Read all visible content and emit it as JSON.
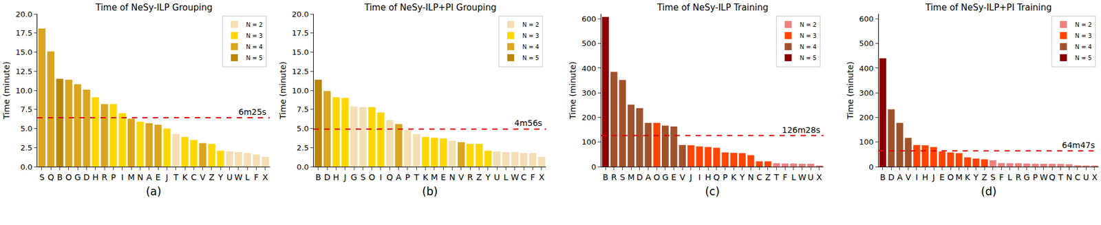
{
  "chart_data": [
    {
      "type": "bar",
      "title": "Time of NeSy-ILP Grouping",
      "x_label": "(a)",
      "y_label": "Time (minute)",
      "categories": [
        "S",
        "Q",
        "B",
        "O",
        "G",
        "D",
        "H",
        "R",
        "P",
        "I",
        "M",
        "N",
        "A",
        "E",
        "J",
        "T",
        "K",
        "C",
        "V",
        "Z",
        "Y",
        "U",
        "W",
        "L",
        "F",
        "X"
      ],
      "series": [
        {
          "name": "N = 2",
          "color": "#f5deb3",
          "values": [
            null,
            null,
            null,
            null,
            null,
            null,
            null,
            null,
            null,
            null,
            null,
            null,
            null,
            null,
            null,
            4.3,
            null,
            null,
            null,
            null,
            null,
            2.0,
            1.9,
            1.8,
            1.6,
            1.3
          ]
        },
        {
          "name": "N = 3",
          "color": "#ffd700",
          "values": [
            null,
            null,
            null,
            null,
            null,
            null,
            9.1,
            null,
            8.2,
            7.0,
            null,
            5.9,
            null,
            null,
            5.0,
            null,
            3.9,
            3.5,
            null,
            3.0,
            2.1,
            null,
            null,
            null,
            null,
            null
          ]
        },
        {
          "name": "N = 4",
          "color": "#daa520",
          "values": [
            18.1,
            15.1,
            null,
            11.4,
            10.8,
            10.1,
            null,
            8.2,
            null,
            null,
            6.3,
            null,
            5.7,
            5.5,
            null,
            null,
            null,
            null,
            3.1,
            null,
            null,
            null,
            null,
            null,
            null,
            null
          ]
        },
        {
          "name": "N = 5",
          "color": "#b8860b",
          "values": [
            null,
            null,
            11.5,
            null,
            null,
            null,
            null,
            null,
            null,
            null,
            null,
            null,
            null,
            null,
            null,
            null,
            null,
            null,
            null,
            null,
            null,
            null,
            null,
            null,
            null,
            null
          ]
        }
      ],
      "mean_line": {
        "value": 6.42,
        "label": "6m25s"
      },
      "ylim": [
        0,
        20
      ],
      "yticks": [
        {
          "value": 0,
          "label": "0.0"
        },
        2.5,
        {
          "value": 5,
          "label": "5.0"
        },
        7.5,
        {
          "value": 10,
          "label": "10.0"
        },
        12.5,
        {
          "value": 15,
          "label": "15.0"
        },
        17.5,
        {
          "value": 20,
          "label": "20.0"
        }
      ],
      "grid": false,
      "legend": "upper right"
    },
    {
      "type": "bar",
      "title": "Time of NeSy-ILP+PI Grouping",
      "x_label": "(b)",
      "y_label": "Time (minute)",
      "categories": [
        "B",
        "D",
        "H",
        "J",
        "G",
        "S",
        "O",
        "I",
        "Q",
        "A",
        "P",
        "T",
        "K",
        "M",
        "E",
        "N",
        "V",
        "R",
        "Z",
        "Y",
        "U",
        "L",
        "W",
        "C",
        "F",
        "X"
      ],
      "series": [
        {
          "name": "N = 2",
          "color": "#f5deb3",
          "values": [
            null,
            null,
            null,
            null,
            7.9,
            7.8,
            null,
            null,
            6.1,
            null,
            4.8,
            4.3,
            null,
            null,
            null,
            3.4,
            null,
            null,
            null,
            null,
            2.0,
            1.9,
            1.9,
            1.8,
            1.8,
            1.3
          ]
        },
        {
          "name": "N = 3",
          "color": "#ffd700",
          "values": [
            null,
            null,
            9.1,
            9.0,
            null,
            null,
            7.8,
            7.1,
            null,
            null,
            null,
            null,
            3.9,
            3.8,
            3.7,
            null,
            null,
            3.0,
            3.0,
            2.1,
            null,
            null,
            null,
            null,
            null,
            null
          ]
        },
        {
          "name": "N = 4",
          "color": "#daa520",
          "values": [
            null,
            9.9,
            null,
            null,
            null,
            null,
            null,
            null,
            null,
            5.6,
            null,
            null,
            null,
            null,
            null,
            null,
            3.2,
            null,
            null,
            null,
            null,
            null,
            null,
            null,
            null,
            null
          ]
        },
        {
          "name": "N = 5",
          "color": "#b8860b",
          "values": [
            11.4,
            null,
            null,
            null,
            null,
            null,
            null,
            null,
            null,
            null,
            null,
            null,
            null,
            null,
            null,
            null,
            null,
            null,
            null,
            null,
            null,
            null,
            null,
            null,
            null,
            null
          ]
        }
      ],
      "mean_line": {
        "value": 4.93,
        "label": "4m56s"
      },
      "ylim": [
        0,
        20
      ],
      "yticks": [
        {
          "value": 0,
          "label": "0.0"
        },
        2.5,
        {
          "value": 5,
          "label": "5.0"
        },
        7.5,
        {
          "value": 10,
          "label": "10.0"
        },
        12.5,
        {
          "value": 15,
          "label": "15.0"
        },
        17.5,
        {
          "value": 20,
          "label": "20.0"
        }
      ],
      "grid": false,
      "legend": "upper right"
    },
    {
      "type": "bar",
      "title": "Time of NeSy-ILP Training",
      "x_label": "(c)",
      "y_label": "Time (minute)",
      "categories": [
        "B",
        "R",
        "S",
        "M",
        "D",
        "A",
        "O",
        "G",
        "E",
        "V",
        "J",
        "I",
        "H",
        "Q",
        "P",
        "K",
        "Y",
        "N",
        "C",
        "Z",
        "T",
        "F",
        "L",
        "W",
        "U",
        "X"
      ],
      "series": [
        {
          "name": "N = 2",
          "color": "#f08080",
          "values": [
            null,
            null,
            null,
            null,
            null,
            null,
            null,
            null,
            null,
            null,
            null,
            null,
            null,
            null,
            null,
            null,
            null,
            null,
            null,
            null,
            14,
            13,
            13,
            12,
            12,
            4
          ]
        },
        {
          "name": "N = 3",
          "color": "#ff4500",
          "values": [
            null,
            null,
            null,
            null,
            null,
            null,
            178,
            null,
            null,
            null,
            87,
            82,
            80,
            77,
            58,
            56,
            55,
            47,
            22,
            22,
            null,
            null,
            null,
            null,
            null,
            null
          ]
        },
        {
          "name": "N = 4",
          "color": "#a0522d",
          "values": [
            null,
            385,
            352,
            252,
            238,
            178,
            null,
            167,
            163,
            88,
            null,
            null,
            null,
            null,
            null,
            null,
            null,
            null,
            null,
            null,
            null,
            null,
            null,
            null,
            null,
            null
          ]
        },
        {
          "name": "N = 5",
          "color": "#8b0000",
          "values": [
            608,
            null,
            null,
            null,
            null,
            null,
            null,
            null,
            null,
            null,
            null,
            null,
            null,
            null,
            null,
            null,
            null,
            null,
            null,
            null,
            null,
            null,
            null,
            null,
            null,
            null
          ]
        }
      ],
      "mean_line": {
        "value": 126.47,
        "label": "126m28s"
      },
      "ylim": [
        0,
        620
      ],
      "yticks": [
        0,
        100,
        200,
        300,
        400,
        500,
        600
      ],
      "grid": false,
      "legend": "upper right"
    },
    {
      "type": "bar",
      "title": "Time of NeSy-ILP+PI Training",
      "x_label": "(d)",
      "y_label": "Time (minute)",
      "categories": [
        "B",
        "D",
        "A",
        "V",
        "I",
        "H",
        "J",
        "E",
        "O",
        "M",
        "K",
        "Y",
        "Z",
        "S",
        "F",
        "L",
        "R",
        "G",
        "P",
        "W",
        "Q",
        "T",
        "N",
        "C",
        "U",
        "X"
      ],
      "series": [
        {
          "name": "N = 2",
          "color": "#f08080",
          "values": [
            null,
            null,
            null,
            null,
            null,
            null,
            null,
            null,
            null,
            null,
            null,
            null,
            null,
            26,
            15,
            14,
            14,
            13,
            12,
            12,
            12,
            11,
            10,
            6,
            5,
            5
          ]
        },
        {
          "name": "N = 3",
          "color": "#ff4500",
          "values": [
            null,
            null,
            null,
            null,
            88,
            87,
            80,
            62,
            58,
            55,
            38,
            33,
            30,
            null,
            null,
            null,
            null,
            null,
            null,
            null,
            null,
            null,
            null,
            null,
            null,
            null
          ]
        },
        {
          "name": "N = 4",
          "color": "#a0522d",
          "values": [
            null,
            233,
            178,
            117,
            null,
            null,
            null,
            null,
            null,
            null,
            null,
            null,
            null,
            null,
            null,
            null,
            null,
            null,
            null,
            null,
            null,
            null,
            null,
            null,
            null,
            null
          ]
        },
        {
          "name": "N = 5",
          "color": "#8b0000",
          "values": [
            440,
            null,
            null,
            null,
            null,
            null,
            null,
            null,
            null,
            null,
            null,
            null,
            null,
            null,
            null,
            null,
            null,
            null,
            null,
            null,
            null,
            null,
            null,
            null,
            null,
            null
          ]
        }
      ],
      "mean_line": {
        "value": 64.78,
        "label": "64m47s"
      },
      "ylim": [
        0,
        620
      ],
      "yticks": [
        0,
        100,
        200,
        300,
        400,
        500,
        600
      ],
      "grid": false,
      "legend": "upper right"
    }
  ]
}
